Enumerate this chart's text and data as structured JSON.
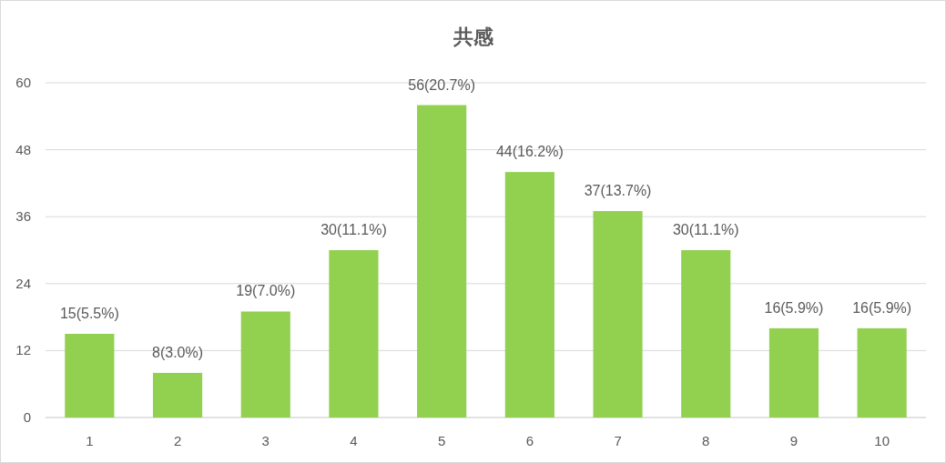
{
  "chart_data": {
    "type": "bar",
    "title": "共感",
    "categories": [
      "1",
      "2",
      "3",
      "4",
      "5",
      "6",
      "7",
      "8",
      "9",
      "10"
    ],
    "values": [
      15,
      8,
      19,
      30,
      56,
      44,
      37,
      30,
      16,
      16
    ],
    "value_labels": [
      "15(5.5%)",
      "8(3.0%)",
      "19(7.0%)",
      "30(11.1%)",
      "56(20.7%)",
      "44(16.2%)",
      "37(13.7%)",
      "30(11.1%)",
      "16(5.9%)",
      "16(5.9%)"
    ],
    "color": "#92d050",
    "ylim": [
      0,
      60
    ],
    "yticks": [
      0,
      12,
      24,
      36,
      48,
      60
    ],
    "grid": "y"
  }
}
